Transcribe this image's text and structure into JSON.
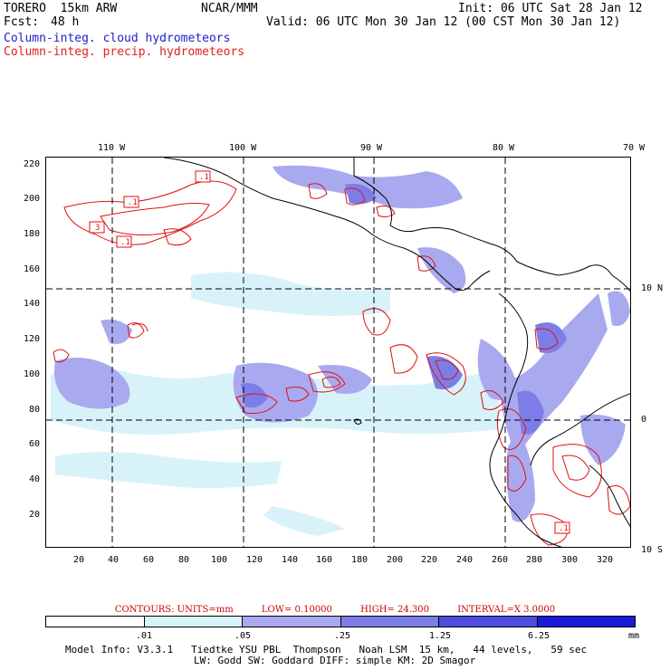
{
  "header": {
    "title_left": "TORERO  15km ARW",
    "title_center": "NCAR/MMM",
    "init": "Init: 06 UTC Sat 28 Jan 12",
    "fcst_label": "Fcst:",
    "fcst_value": "48 h",
    "valid": "Valid: 06 UTC Mon 30 Jan 12 (00 CST Mon 30 Jan 12)",
    "field1": "Column-integ. cloud hydrometeors",
    "field2": "Column-integ. precip. hydrometeors"
  },
  "colors": {
    "field1": "#2020d0",
    "field2": "#e02020",
    "contour": "#e01010",
    "coast": "#000000",
    "shade_levels": [
      "#ffffff",
      "#d8f2fa",
      "#a9a9f0",
      "#7d7de8",
      "#4d4de0",
      "#1a1ad8"
    ]
  },
  "map": {
    "lon_labels": [
      "110 W",
      "100 W",
      "90 W",
      "80 W",
      "70 W"
    ],
    "lat_labels": [
      "10 N",
      "0",
      "10 S"
    ],
    "y_ticks": [
      "220",
      "200",
      "180",
      "160",
      "140",
      "120",
      "100",
      "80",
      "60",
      "40",
      "20"
    ],
    "x_ticks": [
      "20",
      "40",
      "60",
      "80",
      "100",
      "120",
      "140",
      "160",
      "180",
      "200",
      "220",
      "240",
      "260",
      "280",
      "300",
      "320"
    ],
    "contour_labels": [
      ".1",
      "3",
      ".1",
      ".1",
      ".1"
    ]
  },
  "contour_info": {
    "units": "CONTOURS:  UNITS=mm",
    "low": "LOW= 0.10000",
    "high": "HIGH=  24.300",
    "interval": "INTERVAL=X  3.0000"
  },
  "colorbar": {
    "labels": [
      ".01",
      ".05",
      ".25",
      "1.25",
      "6.25"
    ],
    "unit": "mm"
  },
  "model_info": {
    "line1": "Model Info: V3.3.1   Tiedtke YSU PBL  Thompson   Noah LSM  15 km,   44 levels,   59 sec",
    "line2": "LW: Godd SW: Goddard DIFF: simple KM: 2D Smagor"
  }
}
